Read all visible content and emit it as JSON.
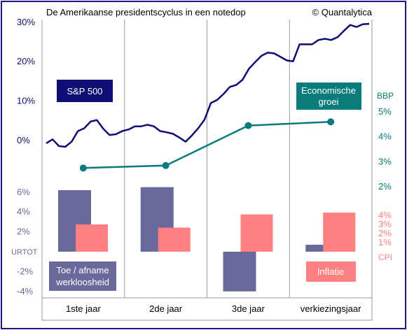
{
  "chart_data": {
    "type": "line",
    "title": "De Amerikaanse presidentscyclus in een notedop",
    "credit": "© Quantalytica",
    "categories": [
      "1ste jaar",
      "2de jaar",
      "3de jaar",
      "verkiezingsjaar"
    ],
    "colors": {
      "sp500": "#0d0d73",
      "gdp": "#0a7b7b",
      "unemployment": "#69699b",
      "cpi": "#ff8080",
      "grid": "#999999"
    },
    "sp500": {
      "label": "S&P 500",
      "y_ticks": [
        "0%",
        "10%",
        "20%",
        "30%"
      ],
      "ylim": [
        0,
        30
      ],
      "values": [
        -0.7,
        0.3,
        -1.4,
        -1.6,
        -0.3,
        2.4,
        3.1,
        4.8,
        5.2,
        3.0,
        1.4,
        1.6,
        2.4,
        2.8,
        3.6,
        3.6,
        4.0,
        3.6,
        2.4,
        2.1,
        1.7,
        0.8,
        -0.3,
        1.3,
        3.1,
        5.3,
        9.5,
        10.3,
        11.8,
        13.6,
        14.1,
        15.4,
        18.2,
        19.9,
        21.5,
        22.3,
        22.1,
        21.2,
        20.3,
        20.1,
        24.4,
        24.4,
        24.4,
        25.5,
        25.8,
        25.5,
        26.2,
        27.8,
        29.3,
        28.8,
        29.5,
        29.6
      ]
    },
    "gdp": {
      "label": "Economische groei",
      "axis_title": "BBP",
      "y_ticks": [
        "5%",
        "4%",
        "3%",
        "2%"
      ],
      "ylim": [
        2,
        5
      ],
      "values": [
        2.75,
        2.85,
        4.45,
        4.6
      ]
    },
    "unemployment": {
      "label": "Toe / afname werkloosheid",
      "axis_title": "URTOT",
      "y_ticks": [
        "6%",
        "4%",
        "2%",
        "-2%",
        "-4%"
      ],
      "ylim": [
        -4,
        6
      ],
      "values": [
        6.2,
        6.5,
        -4.0,
        0.7
      ]
    },
    "cpi": {
      "label": "Inflatie",
      "axis_title": "CPI",
      "y_ticks": [
        "4%",
        "3%",
        "2%",
        "1%"
      ],
      "ylim": [
        0,
        4
      ],
      "values": [
        3.0,
        2.65,
        4.1,
        4.3
      ]
    }
  }
}
